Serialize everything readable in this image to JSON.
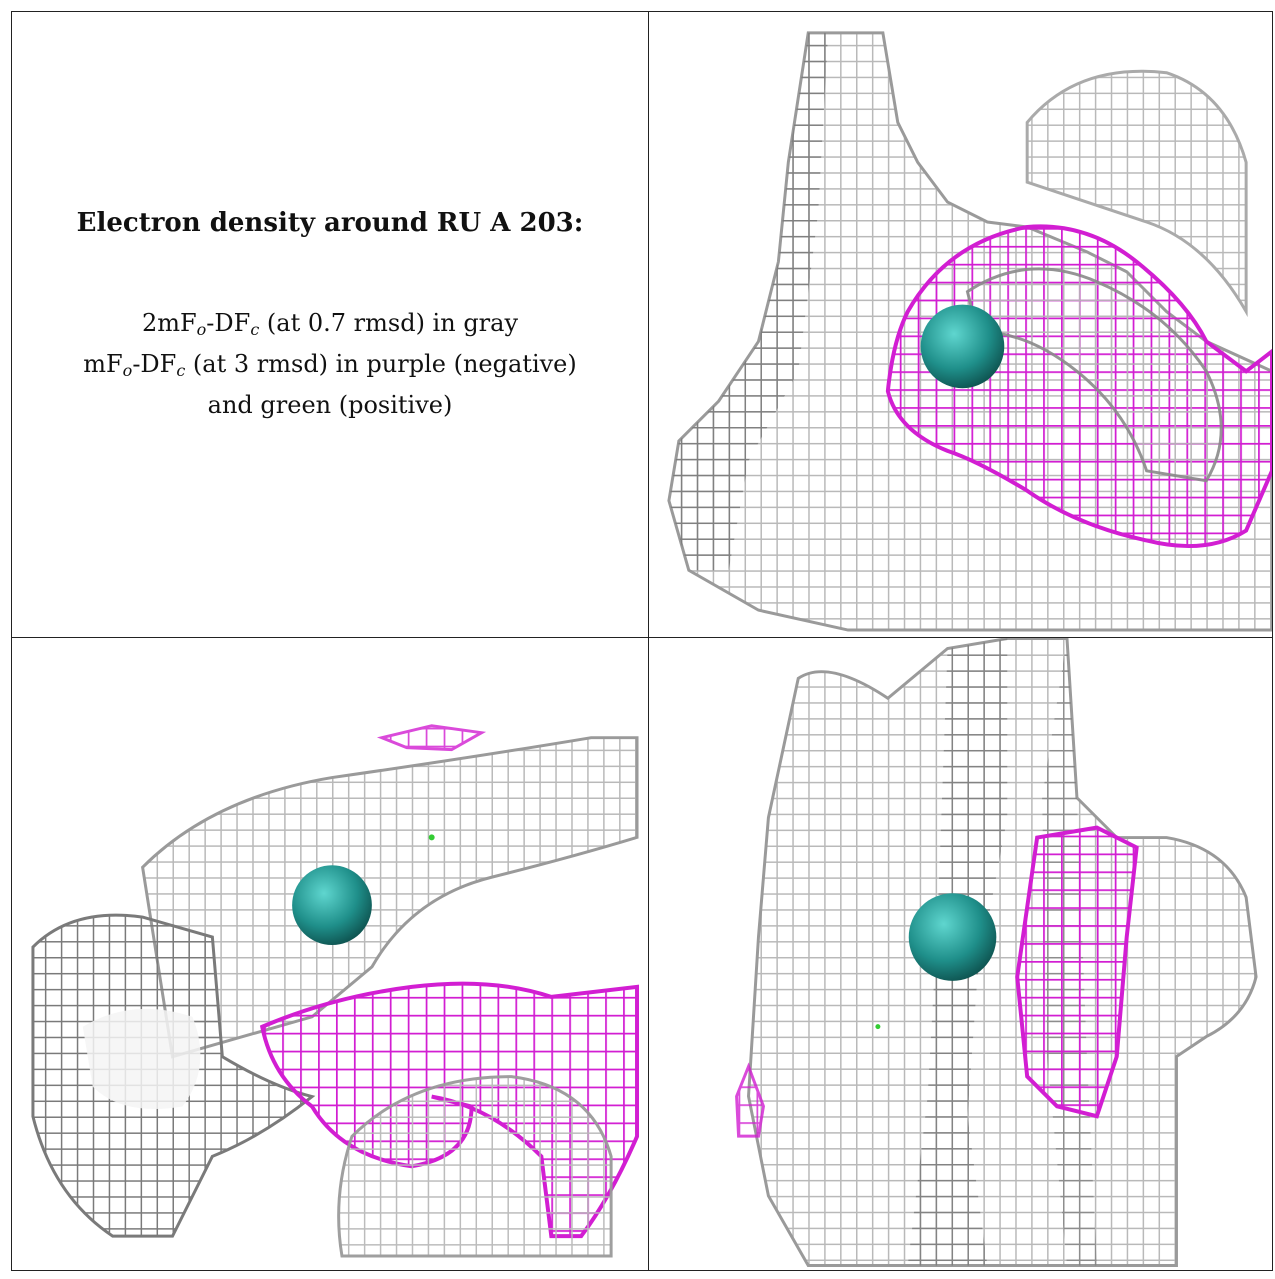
{
  "caption": {
    "title": "Electron density around RU A 203:",
    "line1": {
      "prefix": "2mF",
      "sub1": "o",
      "mid": "-DF",
      "sub2": "c",
      "suffix": " (at 0.7 rmsd) in gray"
    },
    "line2": {
      "prefix": "mF",
      "sub1": "o",
      "mid": "-DF",
      "sub2": "c",
      "suffix": " (at 3 rmsd) in purple (negative)"
    },
    "line3": "and green (positive)"
  },
  "colors": {
    "map_2fofc": "#b4b4b4",
    "map_2fofc_dark": "#6e6e6e",
    "map_fofc_negative": "#d21ed2",
    "map_fofc_positive": "#33cc33",
    "atom": "#1f8f8a"
  },
  "panels": [
    {
      "name": "view-top-right"
    },
    {
      "name": "view-bottom-left"
    },
    {
      "name": "view-bottom-right"
    }
  ]
}
